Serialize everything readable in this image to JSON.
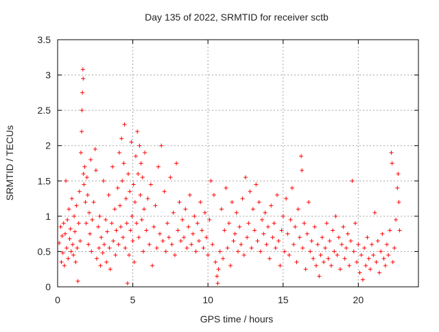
{
  "chart_data": {
    "type": "scatter",
    "title": "Day 135 of 2022, SRMTID for receiver sctb",
    "xlabel": "GPS time / hours",
    "ylabel": "SRMTID / TECUs",
    "xlim": [
      0,
      24
    ],
    "ylim": [
      0,
      3.5
    ],
    "x_ticks": [
      0,
      5,
      10,
      15,
      20
    ],
    "x_tick_labels": [
      "0",
      "5",
      "10",
      "15",
      "20"
    ],
    "y_ticks": [
      0,
      0.5,
      1,
      1.5,
      2,
      2.5,
      3,
      3.5
    ],
    "y_tick_labels": [
      "0",
      "0.5",
      "1",
      "1.5",
      "2",
      "2.5",
      "3",
      "3.5"
    ],
    "grid": true,
    "marker": "+",
    "color": "#ff0000",
    "series": [
      {
        "name": "SRMTID",
        "points": [
          [
            0.1,
            0.62
          ],
          [
            0.2,
            0.85
          ],
          [
            0.25,
            0.35
          ],
          [
            0.3,
            0.72
          ],
          [
            0.35,
            0.48
          ],
          [
            0.4,
            0.9
          ],
          [
            0.45,
            0.3
          ],
          [
            0.5,
            0.75
          ],
          [
            0.55,
            1.5
          ],
          [
            0.6,
            0.55
          ],
          [
            0.65,
            0.95
          ],
          [
            0.7,
            0.4
          ],
          [
            0.75,
            1.1
          ],
          [
            0.8,
            0.68
          ],
          [
            0.85,
            0.82
          ],
          [
            0.9,
            0.5
          ],
          [
            0.95,
            1.25
          ],
          [
            1.0,
            0.6
          ],
          [
            1.05,
            0.45
          ],
          [
            1.1,
            1.0
          ],
          [
            1.15,
            0.78
          ],
          [
            1.2,
            0.35
          ],
          [
            1.25,
            1.15
          ],
          [
            1.3,
            0.55
          ],
          [
            1.35,
            0.08
          ],
          [
            1.4,
            0.9
          ],
          [
            1.45,
            1.35
          ],
          [
            1.5,
            0.65
          ],
          [
            1.55,
            1.9
          ],
          [
            1.6,
            2.2
          ],
          [
            1.62,
            2.5
          ],
          [
            1.65,
            2.75
          ],
          [
            1.68,
            3.08
          ],
          [
            1.7,
            2.95
          ],
          [
            1.72,
            1.6
          ],
          [
            1.75,
            1.45
          ],
          [
            1.8,
            1.7
          ],
          [
            1.85,
            1.2
          ],
          [
            1.9,
            0.9
          ],
          [
            1.95,
            1.55
          ],
          [
            2.0,
            1.3
          ],
          [
            2.05,
            0.6
          ],
          [
            2.1,
            1.05
          ],
          [
            2.15,
            0.75
          ],
          [
            2.2,
            1.8
          ],
          [
            2.25,
            0.5
          ],
          [
            2.3,
            0.95
          ],
          [
            2.4,
            1.2
          ],
          [
            2.5,
            1.95
          ],
          [
            2.55,
            1.65
          ],
          [
            2.6,
            0.4
          ],
          [
            2.7,
            0.85
          ],
          [
            2.75,
            0.55
          ],
          [
            2.8,
            1.0
          ],
          [
            2.85,
            0.3
          ],
          [
            2.9,
            0.7
          ],
          [
            3.0,
            0.48
          ],
          [
            3.05,
            1.5
          ],
          [
            3.1,
            0.6
          ],
          [
            3.2,
            0.95
          ],
          [
            3.25,
            0.35
          ],
          [
            3.3,
            0.78
          ],
          [
            3.4,
            1.3
          ],
          [
            3.45,
            0.55
          ],
          [
            3.5,
            0.25
          ],
          [
            3.6,
            0.9
          ],
          [
            3.65,
            1.7
          ],
          [
            3.7,
            0.65
          ],
          [
            3.8,
            1.1
          ],
          [
            3.85,
            0.45
          ],
          [
            3.9,
            0.8
          ],
          [
            4.0,
            1.4
          ],
          [
            4.05,
            0.6
          ],
          [
            4.1,
            1.9
          ],
          [
            4.15,
            1.15
          ],
          [
            4.2,
            0.85
          ],
          [
            4.25,
            2.1
          ],
          [
            4.3,
            1.5
          ],
          [
            4.35,
            0.7
          ],
          [
            4.4,
            1.75
          ],
          [
            4.45,
            2.3
          ],
          [
            4.5,
            0.55
          ],
          [
            4.55,
            1.25
          ],
          [
            4.6,
            0.9
          ],
          [
            4.65,
            0.05
          ],
          [
            4.7,
            1.6
          ],
          [
            4.75,
            0.45
          ],
          [
            4.8,
            1.35
          ],
          [
            4.85,
            0.8
          ],
          [
            4.9,
            2.05
          ],
          [
            4.95,
            1.0
          ],
          [
            5.0,
            0.65
          ],
          [
            5.05,
            1.45
          ],
          [
            5.1,
            0.35
          ],
          [
            5.15,
            1.2
          ],
          [
            5.2,
            1.85
          ],
          [
            5.25,
            0.9
          ],
          [
            5.3,
            2.2
          ],
          [
            5.35,
            1.6
          ],
          [
            5.4,
            0.7
          ],
          [
            5.45,
            2.0
          ],
          [
            5.5,
            1.3
          ],
          [
            5.55,
            1.75
          ],
          [
            5.6,
            0.95
          ],
          [
            5.65,
            1.55
          ],
          [
            5.7,
            0.5
          ],
          [
            5.75,
            1.1
          ],
          [
            5.8,
            1.9
          ],
          [
            5.9,
            0.8
          ],
          [
            6.0,
            1.25
          ],
          [
            6.1,
            0.6
          ],
          [
            6.2,
            1.45
          ],
          [
            6.3,
            0.3
          ],
          [
            6.4,
            0.85
          ],
          [
            6.5,
            1.15
          ],
          [
            6.6,
            0.55
          ],
          [
            6.7,
            1.7
          ],
          [
            6.8,
            0.75
          ],
          [
            6.9,
            2.0
          ],
          [
            7.0,
            0.65
          ],
          [
            7.1,
            1.35
          ],
          [
            7.2,
            0.5
          ],
          [
            7.3,
            0.9
          ],
          [
            7.4,
            0.7
          ],
          [
            7.5,
            1.55
          ],
          [
            7.6,
            0.6
          ],
          [
            7.7,
            1.05
          ],
          [
            7.8,
            0.45
          ],
          [
            7.9,
            1.75
          ],
          [
            8.0,
            0.8
          ],
          [
            8.1,
            1.2
          ],
          [
            8.2,
            0.65
          ],
          [
            8.3,
            0.95
          ],
          [
            8.4,
            0.7
          ],
          [
            8.5,
            1.1
          ],
          [
            8.6,
            0.55
          ],
          [
            8.7,
            0.85
          ],
          [
            8.8,
            1.3
          ],
          [
            8.9,
            0.6
          ],
          [
            9.0,
            0.75
          ],
          [
            9.1,
            1.0
          ],
          [
            9.2,
            0.5
          ],
          [
            9.3,
            0.9
          ],
          [
            9.4,
            0.65
          ],
          [
            9.5,
            1.2
          ],
          [
            9.6,
            0.8
          ],
          [
            9.7,
            0.55
          ],
          [
            9.8,
            1.05
          ],
          [
            9.9,
            0.7
          ],
          [
            10.0,
            0.45
          ],
          [
            10.1,
            0.95
          ],
          [
            10.2,
            1.5
          ],
          [
            10.3,
            0.6
          ],
          [
            10.4,
            1.3
          ],
          [
            10.5,
            0.35
          ],
          [
            10.6,
            0.15
          ],
          [
            10.65,
            0.05
          ],
          [
            10.7,
            0.25
          ],
          [
            10.8,
            0.5
          ],
          [
            10.9,
            1.1
          ],
          [
            11.0,
            0.4
          ],
          [
            11.1,
            0.8
          ],
          [
            11.2,
            1.4
          ],
          [
            11.3,
            0.55
          ],
          [
            11.4,
            0.9
          ],
          [
            11.5,
            0.3
          ],
          [
            11.6,
            1.2
          ],
          [
            11.7,
            0.65
          ],
          [
            11.8,
            0.75
          ],
          [
            11.9,
            1.05
          ],
          [
            12.0,
            0.5
          ],
          [
            12.1,
            0.85
          ],
          [
            12.2,
            0.6
          ],
          [
            12.3,
            1.25
          ],
          [
            12.4,
            0.45
          ],
          [
            12.5,
            1.55
          ],
          [
            12.6,
            0.7
          ],
          [
            12.7,
            0.9
          ],
          [
            12.8,
            1.35
          ],
          [
            12.9,
            0.55
          ],
          [
            13.0,
            1.1
          ],
          [
            13.1,
            0.8
          ],
          [
            13.2,
            1.45
          ],
          [
            13.3,
            0.65
          ],
          [
            13.4,
            1.2
          ],
          [
            13.5,
            0.5
          ],
          [
            13.6,
            0.95
          ],
          [
            13.7,
            0.75
          ],
          [
            13.8,
            1.05
          ],
          [
            13.9,
            0.6
          ],
          [
            14.0,
            0.85
          ],
          [
            14.1,
            0.4
          ],
          [
            14.2,
            1.15
          ],
          [
            14.3,
            0.7
          ],
          [
            14.4,
            0.9
          ],
          [
            14.5,
            0.55
          ],
          [
            14.6,
            1.3
          ],
          [
            14.7,
            0.65
          ],
          [
            14.8,
            0.3
          ],
          [
            14.9,
            0.8
          ],
          [
            15.0,
            1.0
          ],
          [
            15.1,
            0.5
          ],
          [
            15.2,
            1.25
          ],
          [
            15.3,
            0.75
          ],
          [
            15.4,
            0.45
          ],
          [
            15.5,
            0.95
          ],
          [
            15.6,
            1.4
          ],
          [
            15.7,
            0.6
          ],
          [
            15.8,
            0.85
          ],
          [
            15.9,
            0.35
          ],
          [
            16.0,
            1.1
          ],
          [
            16.1,
            0.7
          ],
          [
            16.2,
            1.85
          ],
          [
            16.25,
            1.65
          ],
          [
            16.3,
            0.55
          ],
          [
            16.4,
            0.9
          ],
          [
            16.5,
            0.25
          ],
          [
            16.6,
            0.75
          ],
          [
            16.7,
            1.2
          ],
          [
            16.8,
            0.5
          ],
          [
            16.9,
            0.65
          ],
          [
            17.0,
            0.4
          ],
          [
            17.1,
            0.85
          ],
          [
            17.2,
            0.3
          ],
          [
            17.3,
            0.6
          ],
          [
            17.4,
            0.15
          ],
          [
            17.5,
            0.45
          ],
          [
            17.6,
            0.7
          ],
          [
            17.7,
            0.35
          ],
          [
            17.8,
            0.55
          ],
          [
            17.9,
            0.9
          ],
          [
            18.0,
            0.4
          ],
          [
            18.1,
            0.65
          ],
          [
            18.2,
            0.3
          ],
          [
            18.3,
            0.8
          ],
          [
            18.4,
            0.5
          ],
          [
            18.5,
            1.0
          ],
          [
            18.6,
            0.45
          ],
          [
            18.7,
            0.7
          ],
          [
            18.8,
            0.25
          ],
          [
            18.9,
            0.6
          ],
          [
            19.0,
            0.85
          ],
          [
            19.1,
            0.4
          ],
          [
            19.2,
            0.55
          ],
          [
            19.3,
            0.75
          ],
          [
            19.4,
            0.3
          ],
          [
            19.5,
            0.65
          ],
          [
            19.6,
            1.5
          ],
          [
            19.7,
            0.5
          ],
          [
            19.8,
            0.9
          ],
          [
            19.9,
            0.35
          ],
          [
            20.0,
            0.6
          ],
          [
            20.1,
            0.2
          ],
          [
            20.2,
            0.45
          ],
          [
            20.3,
            0.1
          ],
          [
            20.4,
            0.55
          ],
          [
            20.5,
            0.3
          ],
          [
            20.6,
            0.7
          ],
          [
            20.7,
            0.4
          ],
          [
            20.8,
            0.25
          ],
          [
            20.9,
            0.6
          ],
          [
            21.0,
            0.45
          ],
          [
            21.1,
            1.05
          ],
          [
            21.2,
            0.35
          ],
          [
            21.3,
            0.65
          ],
          [
            21.4,
            0.2
          ],
          [
            21.5,
            0.5
          ],
          [
            21.6,
            0.75
          ],
          [
            21.7,
            0.4
          ],
          [
            21.8,
            0.3
          ],
          [
            21.9,
            0.6
          ],
          [
            22.0,
            0.45
          ],
          [
            22.1,
            0.8
          ],
          [
            22.2,
            1.9
          ],
          [
            22.25,
            1.75
          ],
          [
            22.3,
            0.35
          ],
          [
            22.4,
            0.55
          ],
          [
            22.5,
            0.95
          ],
          [
            22.6,
            1.4
          ],
          [
            22.65,
            1.6
          ],
          [
            22.7,
            1.2
          ],
          [
            22.75,
            0.8
          ]
        ]
      }
    ]
  }
}
